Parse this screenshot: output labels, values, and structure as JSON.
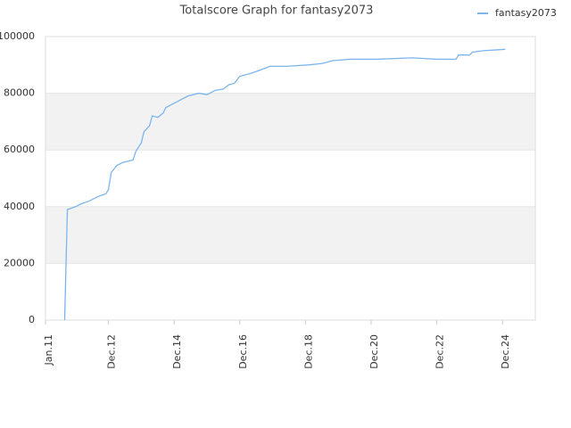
{
  "chart_data": {
    "type": "line",
    "title": "Totalscore Graph for fantasy2073",
    "x": [
      "2011-08",
      "2011-09",
      "2011-12",
      "2012-02",
      "2012-05",
      "2012-08",
      "2012-11",
      "2012-12",
      "2013-01",
      "2013-03",
      "2013-05",
      "2013-09",
      "2013-10",
      "2013-12",
      "2014-01",
      "2014-03",
      "2014-04",
      "2014-06",
      "2014-08",
      "2014-09",
      "2015-01",
      "2015-05",
      "2015-09",
      "2015-12",
      "2016-03",
      "2016-06",
      "2016-08",
      "2016-10",
      "2016-12",
      "2017-04",
      "2017-07",
      "2017-11",
      "2018-05",
      "2019-01",
      "2019-06",
      "2019-10",
      "2020-04",
      "2021-02",
      "2022-03",
      "2022-12",
      "2023-07",
      "2023-08",
      "2023-12",
      "2024-01",
      "2024-05",
      "2025-01"
    ],
    "series": [
      {
        "name": "fantasy2073",
        "color": "#7cb5ec",
        "values": [
          0,
          39000,
          40000,
          41000,
          42000,
          43500,
          44500,
          46000,
          52000,
          54500,
          55500,
          56500,
          59500,
          62500,
          66500,
          68500,
          72000,
          71500,
          73000,
          75000,
          77000,
          79000,
          80000,
          79500,
          81000,
          81500,
          83000,
          83500,
          86000,
          87000,
          88000,
          89500,
          89500,
          90000,
          90500,
          91500,
          92000,
          92000,
          92500,
          92000,
          92000,
          93500,
          93500,
          94500,
          95000,
          95500
        ]
      }
    ],
    "xlim": [
      "2011-01",
      "2025-12"
    ],
    "xticks": [
      {
        "value": "2011-01",
        "label": "Jan.11"
      },
      {
        "value": "2012-12",
        "label": "Dec.12"
      },
      {
        "value": "2014-12",
        "label": "Dec.14"
      },
      {
        "value": "2016-12",
        "label": "Dec.16"
      },
      {
        "value": "2018-12",
        "label": "Dec.18"
      },
      {
        "value": "2020-12",
        "label": "Dec.20"
      },
      {
        "value": "2022-12",
        "label": "Dec.22"
      },
      {
        "value": "2024-12",
        "label": "Dec.24"
      }
    ],
    "ylim": [
      0,
      100000
    ],
    "yticks": [
      0,
      20000,
      40000,
      60000,
      80000,
      100000
    ],
    "grid_bands": true,
    "legend": "top right"
  }
}
